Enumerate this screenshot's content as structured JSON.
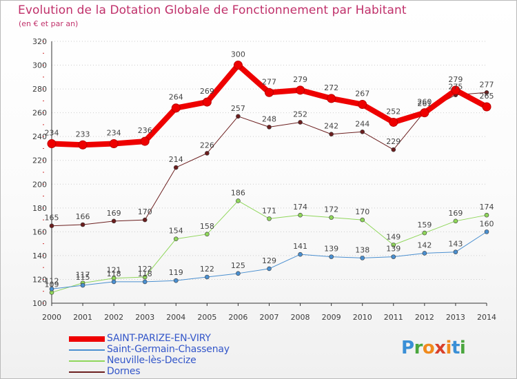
{
  "title": "Evolution de la Dotation Globale de Fonctionnement par Habitant",
  "subtitle": "(en € et par an)",
  "brand": {
    "letters": [
      "P",
      "r",
      "o",
      "x",
      "i",
      "t",
      "i"
    ],
    "colors": [
      "#3a8fd6",
      "#4aa63d",
      "#f08a1c",
      "#d9402a",
      "#f08a1c",
      "#3a8fd6",
      "#4aa63d"
    ]
  },
  "chart_data": {
    "type": "line",
    "x": [
      "2000",
      "2001",
      "2002",
      "2003",
      "2004",
      "2005",
      "2006",
      "2007",
      "2008",
      "2009",
      "2010",
      "2011",
      "2012",
      "2013",
      "2014"
    ],
    "ylim": [
      100,
      320
    ],
    "yticks": [
      100,
      120,
      140,
      160,
      180,
      200,
      220,
      240,
      260,
      280,
      300,
      320
    ],
    "grid": "horizontal dotted",
    "legend_position": "bottom-left",
    "series": [
      {
        "name": "SAINT-PARIZE-EN-VIRY",
        "color": "#ee0000",
        "width": 8,
        "marker_r": 6,
        "values": [
          234,
          233,
          234,
          236,
          264,
          269,
          300,
          277,
          279,
          272,
          267,
          252,
          260,
          279,
          265
        ]
      },
      {
        "name": "Saint-Germain-Chassenay",
        "color": "#4a8fd0",
        "width": 1,
        "marker_r": 3,
        "values": [
          112,
          115,
          118,
          118,
          119,
          122,
          125,
          129,
          141,
          139,
          138,
          139,
          142,
          143,
          160
        ]
      },
      {
        "name": "Neuville-lès-Decize",
        "color": "#8fd65a",
        "width": 1,
        "marker_r": 3,
        "values": [
          109,
          117,
          121,
          122,
          154,
          158,
          186,
          171,
          174,
          172,
          170,
          149,
          159,
          169,
          174
        ]
      },
      {
        "name": "Dornes",
        "color": "#6b1e1e",
        "width": 1,
        "marker_r": 3,
        "values": [
          165,
          166,
          169,
          170,
          214,
          226,
          257,
          248,
          252,
          242,
          244,
          229,
          261,
          275,
          277
        ]
      }
    ]
  }
}
